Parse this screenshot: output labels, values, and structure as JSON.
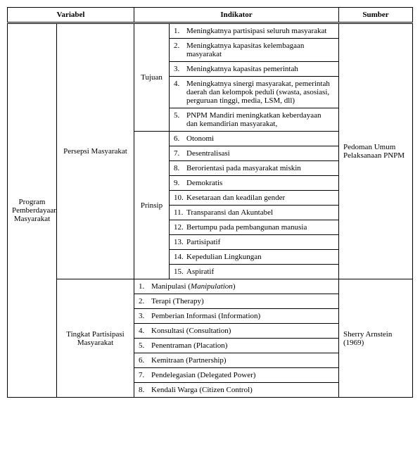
{
  "headers": {
    "variabel": "Variabel",
    "indikator": "Indikator",
    "sumber": "Sumber"
  },
  "variabel_col1": "Program Pemberdayaan Masyarakat",
  "persepsi_label": "Persepsi Masyarakat",
  "tujuan_label": "Tujuan",
  "prinsip_label": "Prinsip",
  "sumber1": "Pedoman Umum Pelaksanaan PNPM",
  "tujuan_items": {
    "i1n": "1.",
    "i1t": "Meningkatnya partisipasi seluruh masyarakat",
    "i2n": "2.",
    "i2t": "Meningkatnya kapasitas kelembagaan masyarakat",
    "i3n": "3.",
    "i3t": "Meningkatnya kapasitas pemerintah",
    "i4n": "4.",
    "i4t": "Meningkatnya sinergi masyarakat, pemerintah daerah dan kelompok peduli (swasta, asosiasi, perguruan tinggi, media, LSM, dll)",
    "i5n": "5.",
    "i5t": "PNPM Mandiri meningkatkan keberdayaan dan kemandirian masyarakat,"
  },
  "prinsip_items": {
    "i6n": "6.",
    "i6t": "Otonomi",
    "i7n": "7.",
    "i7t": "Desentralisasi",
    "i8n": "8.",
    "i8t": "Berorientasi pada masyarakat miskin",
    "i9n": "9.",
    "i9t": "Demokratis",
    "i10n": "10.",
    "i10t": "Kesetaraan dan keadilan gender",
    "i11n": "11.",
    "i11t": "Transparansi dan Akuntabel",
    "i12n": "12.",
    "i12t": "Bertumpu pada pembangunan manusia",
    "i13n": "13.",
    "i13t": "Partisipatif",
    "i14n": "14.",
    "i14t": "Kepedulian Lingkungan",
    "i15n": "15.",
    "i15t": "Aspiratif"
  },
  "partisipasi_label": "Tingkat Partisipasi Masyarakat",
  "sumber2": "Sherry Arnstein (1969)",
  "partisipasi_items": {
    "p1n": "1.",
    "p1a": "Manipulasi (",
    "p1i": "Manipulation",
    "p1b": ")",
    "p2n": "2.",
    "p2t": "Terapi (Therapy)",
    "p3n": "3.",
    "p3t": "Pemberian Informasi (Information)",
    "p4n": "4.",
    "p4t": "Konsultasi (Consultation)",
    "p5n": "5.",
    "p5t": "Penentraman (Placation)",
    "p6n": "6.",
    "p6t": "Kemitraan (Partnership)",
    "p7n": "7.",
    "p7t": "Pendelegasian (Delegated Power)",
    "p8n": "8.",
    "p8t": "Kendali Warga (Citizen Control)"
  }
}
